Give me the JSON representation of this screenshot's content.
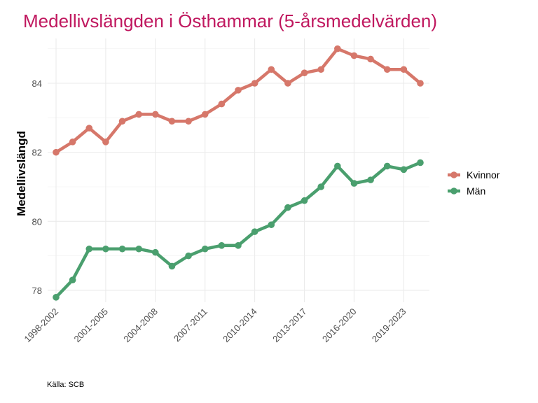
{
  "chart_data": {
    "type": "line",
    "title": "Medellivslängden i Östhammar (5-årsmedelvärden)",
    "xlabel": "",
    "ylabel": "Medellivslängd",
    "caption": "Källa: SCB",
    "ylim": [
      77.75,
      85.2
    ],
    "yticks": [
      78,
      80,
      82,
      84
    ],
    "ytick_labels": [
      "78",
      "80",
      "82",
      "84"
    ],
    "grid": true,
    "legend_position": "right",
    "categories": [
      "1998-2002",
      "1999-2003",
      "2000-2004",
      "2001-2005",
      "2002-2006",
      "2003-2007",
      "2004-2008",
      "2005-2009",
      "2006-2010",
      "2007-2011",
      "2008-2012",
      "2009-2013",
      "2010-2014",
      "2011-2015",
      "2012-2016",
      "2013-2017",
      "2014-2018",
      "2015-2019",
      "2016-2020",
      "2017-2021",
      "2018-2022",
      "2019-2023",
      "2020-2024"
    ],
    "xtick_labels": [
      "1998-2002",
      "2001-2005",
      "2004-2008",
      "2007-2011",
      "2010-2014",
      "2013-2017",
      "2016-2020",
      "2019-2023"
    ],
    "series": [
      {
        "name": "Kvinnor",
        "color": "#d6776a",
        "values": [
          82.0,
          82.3,
          82.7,
          82.3,
          82.9,
          83.1,
          83.1,
          82.9,
          82.9,
          83.1,
          83.4,
          83.8,
          84.0,
          84.4,
          84.0,
          84.3,
          84.4,
          85.0,
          84.8,
          84.7,
          84.4,
          84.4,
          84.0
        ]
      },
      {
        "name": "Män",
        "color": "#4a9f6e",
        "values": [
          77.8,
          78.3,
          79.2,
          79.2,
          79.2,
          79.2,
          79.1,
          78.7,
          79.0,
          79.2,
          79.3,
          79.3,
          79.7,
          79.9,
          80.4,
          80.6,
          81.0,
          81.6,
          81.1,
          81.2,
          81.6,
          81.5,
          81.7
        ]
      }
    ]
  }
}
